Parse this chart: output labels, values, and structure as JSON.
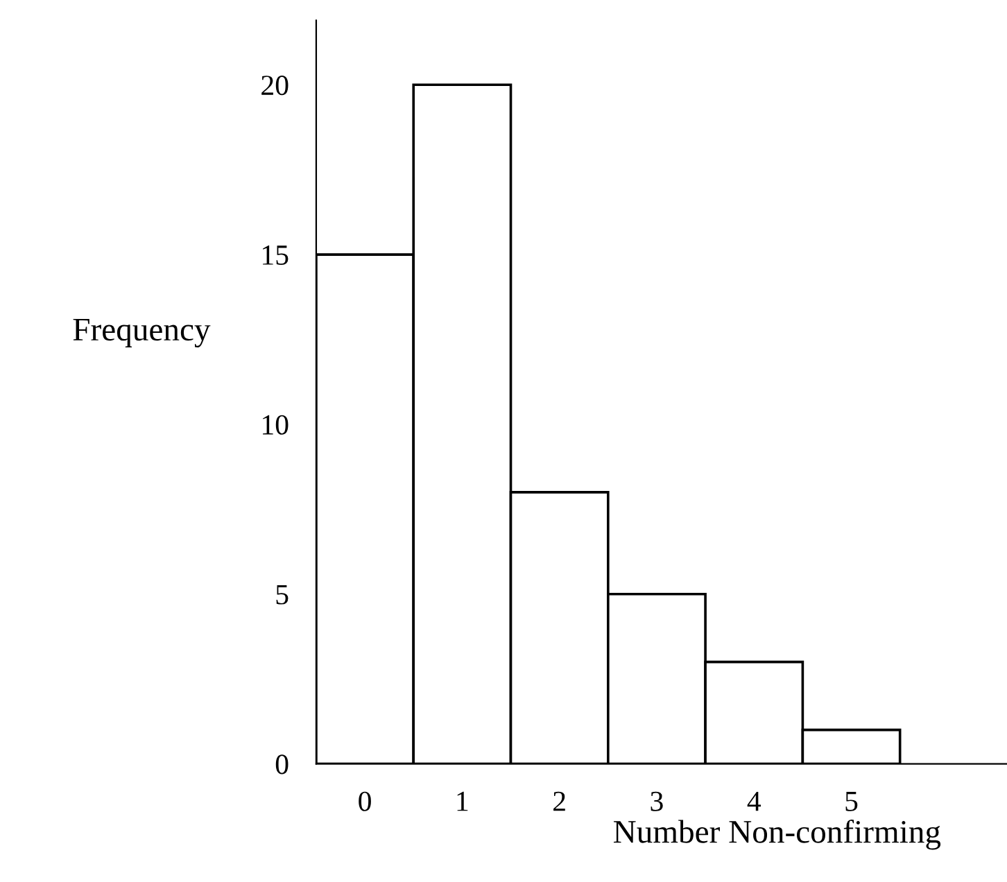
{
  "chart_data": {
    "type": "histogram",
    "xlabel": "Number Non-confirming",
    "ylabel": "Frequency",
    "bins": [
      -0.5,
      0.5,
      1.5,
      2.5,
      3.5,
      4.5,
      5.5
    ],
    "values": [
      15,
      20,
      8,
      5,
      3,
      1
    ],
    "color": "#ffffff",
    "xlim": [
      -0.5,
      6.6
    ],
    "xticks": [
      0,
      1,
      2,
      3,
      4,
      5
    ],
    "ylim": [
      0,
      21.9
    ],
    "yticks": [
      0,
      5,
      10,
      15,
      20
    ],
    "grid": false,
    "legend": false
  }
}
